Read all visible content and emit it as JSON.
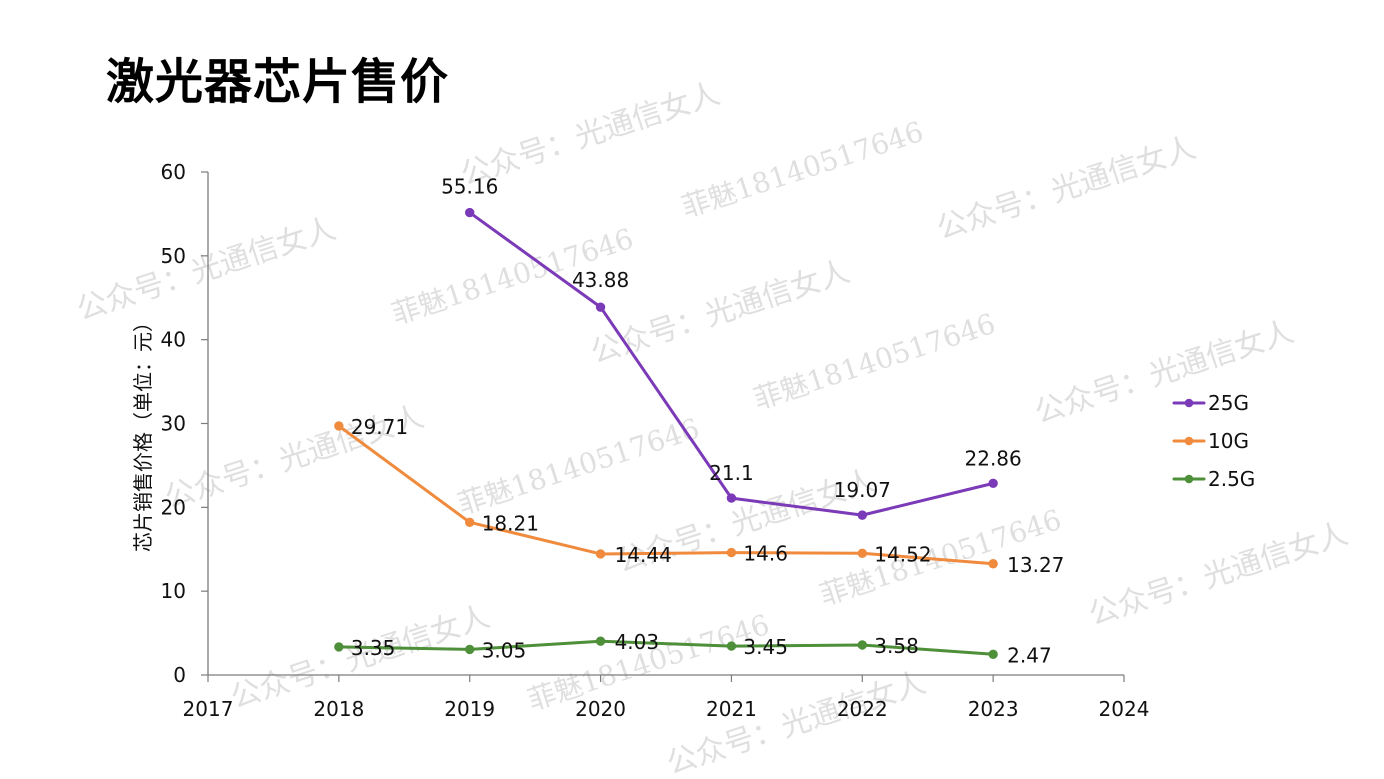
{
  "page": {
    "title": "激光器芯片售价"
  },
  "chart_data": {
    "type": "line",
    "title": "激光器芯片售价",
    "xlabel": "",
    "ylabel": "芯片销售价格（单位：元）",
    "x_ticks": [
      "2017",
      "2018",
      "2019",
      "2020",
      "2021",
      "2022",
      "2023",
      "2024"
    ],
    "y_ticks": [
      "0",
      "10",
      "20",
      "30",
      "40",
      "50",
      "60"
    ],
    "xlim": [
      2017,
      2024
    ],
    "ylim": [
      0,
      60
    ],
    "grid": false,
    "legend_position": "right",
    "series": [
      {
        "name": "25G",
        "color": "#7B3AB7",
        "points": [
          {
            "x": 2019,
            "y": 55.16,
            "label": "55.16"
          },
          {
            "x": 2020,
            "y": 43.88,
            "label": "43.88"
          },
          {
            "x": 2021,
            "y": 21.1,
            "label": "21.1"
          },
          {
            "x": 2022,
            "y": 19.07,
            "label": "19.07"
          },
          {
            "x": 2023,
            "y": 22.86,
            "label": "22.86"
          }
        ]
      },
      {
        "name": "10G",
        "color": "#F08A3C",
        "points": [
          {
            "x": 2018,
            "y": 29.71,
            "label": "29.71"
          },
          {
            "x": 2019,
            "y": 18.21,
            "label": "18.21"
          },
          {
            "x": 2020,
            "y": 14.44,
            "label": "14.44"
          },
          {
            "x": 2021,
            "y": 14.6,
            "label": "14.6"
          },
          {
            "x": 2022,
            "y": 14.52,
            "label": "14.52"
          },
          {
            "x": 2023,
            "y": 13.27,
            "label": "13.27"
          }
        ]
      },
      {
        "name": "2.5G",
        "color": "#4E8F3A",
        "points": [
          {
            "x": 2018,
            "y": 3.35,
            "label": "3.35"
          },
          {
            "x": 2019,
            "y": 3.05,
            "label": "3.05"
          },
          {
            "x": 2020,
            "y": 4.03,
            "label": "4.03"
          },
          {
            "x": 2021,
            "y": 3.45,
            "label": "3.45"
          },
          {
            "x": 2022,
            "y": 3.58,
            "label": "3.58"
          },
          {
            "x": 2023,
            "y": 2.47,
            "label": "2.47"
          }
        ]
      }
    ]
  },
  "watermarks": {
    "wechat": "公众号：光通信女人",
    "contact": "菲魅18140517646"
  }
}
